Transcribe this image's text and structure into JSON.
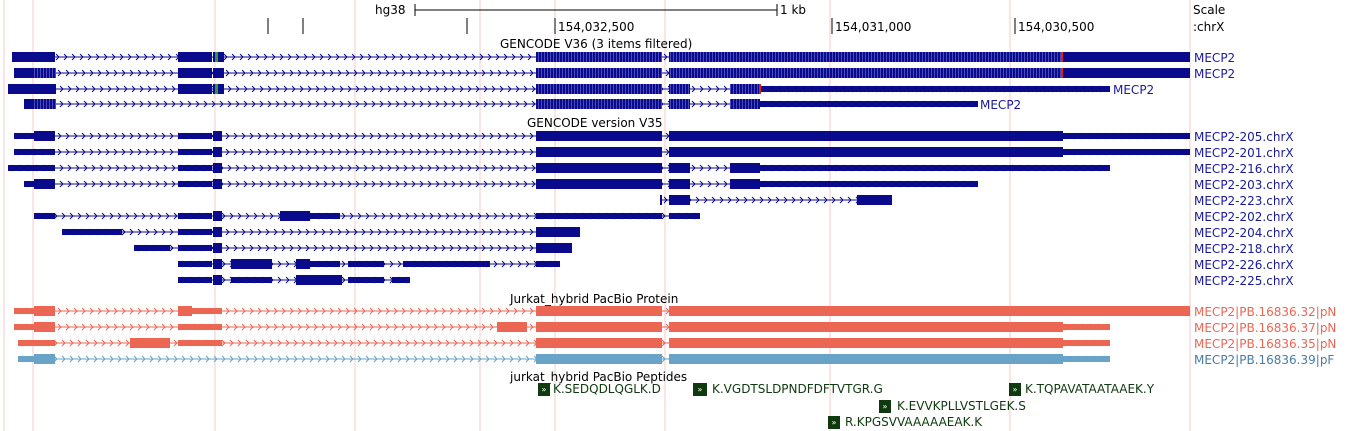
{
  "ruler": {
    "assembly": "hg38",
    "scale_text": "1 kb",
    "positions": [
      "154,032,500",
      "154,031,000",
      "154,030,500"
    ],
    "scale_label": "Scale",
    "chrom_label": ":chrX"
  },
  "tracks": {
    "gencode36": {
      "title": "GENCODE V36 (3 items filtered)",
      "items": [
        "MECP2",
        "MECP2",
        "MECP2",
        "MECP2"
      ]
    },
    "gencode35": {
      "title": "GENCODE version V35",
      "items": [
        "MECP2-205.chrX",
        "MECP2-201.chrX",
        "MECP2-216.chrX",
        "MECP2-203.chrX",
        "MECP2-223.chrX",
        "MECP2-202.chrX",
        "MECP2-204.chrX",
        "MECP2-218.chrX",
        "MECP2-226.chrX",
        "MECP2-225.chrX"
      ]
    },
    "pacbio": {
      "title": "Jurkat_hybrid PacBio Protein",
      "items": [
        "MECP2|PB.16836.32|pN",
        "MECP2|PB.16836.37|pN",
        "MECP2|PB.16836.35|pN",
        "MECP2|PB.16836.39|pF"
      ]
    },
    "peptides": {
      "title": "jurkat_hybrid PacBio Peptides",
      "items": [
        "K.SEDQDLQGLK.D",
        "K.VGDTSLDPNDFDFTVTGR.G",
        "K.TQPAVATAATAAEK.Y",
        "K.EVVKPLLVSTLGEK.S",
        "R.KPGSVVAAAAAEAK.K"
      ]
    }
  },
  "colors": {
    "gencode": "#0a0a8c",
    "gencode_label": "#1a1a9c",
    "pacbio_red": "#ec6654",
    "pacbio_blue": "#6aa3c8",
    "peptide": "#0e3a0e",
    "grid": "#f5caca",
    "cds_hatch": "#4a4ab8",
    "exon_green": "#2a9a3a",
    "exon_red": "#e02020"
  },
  "icons": {
    "strand": "strand-arrow-icon",
    "peptide": "double-chevron-icon"
  }
}
